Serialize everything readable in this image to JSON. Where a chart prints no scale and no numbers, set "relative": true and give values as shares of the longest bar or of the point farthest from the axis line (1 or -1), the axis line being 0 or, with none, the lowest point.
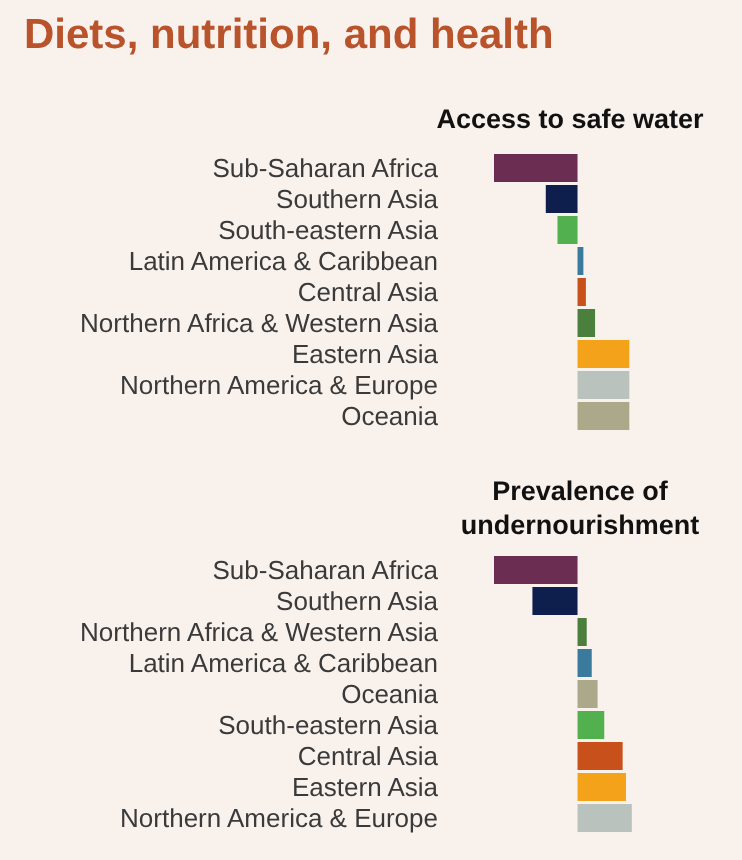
{
  "chart_data": [
    {
      "type": "bar",
      "orientation": "horizontal",
      "relative": true,
      "title": "Diets, nutrition, and health",
      "subtitle": "Access to safe water",
      "categories": [
        "Sub-Saharan Africa",
        "Southern Asia",
        "South-eastern Asia",
        "Latin America & Caribbean",
        "Central Asia",
        "Northern Africa & Western Asia",
        "Eastern Asia",
        "Northern America & Europe",
        "Oceania"
      ],
      "values": [
        -1,
        -0.38,
        -0.24,
        0.07,
        0.1,
        0.21,
        0.62,
        0.62,
        0.62
      ],
      "colors": [
        "#6b2d52",
        "#0e1f4d",
        "#52b04f",
        "#3a7a9c",
        "#c8501a",
        "#4a7f3e",
        "#f5a21b",
        "#b9c2bd",
        "#aca88a"
      ]
    },
    {
      "type": "bar",
      "orientation": "horizontal",
      "relative": true,
      "subtitle": "Prevalence of undernourishment",
      "categories": [
        "Sub-Saharan Africa",
        "Southern Asia",
        "Northern Africa & Western Asia",
        "Latin America & Caribbean",
        "Oceania",
        "South-eastern Asia",
        "Central Asia",
        "Eastern Asia",
        "Northern America & Europe"
      ],
      "values": [
        -1,
        -0.54,
        0.11,
        0.17,
        0.24,
        0.32,
        0.54,
        0.58,
        0.65
      ],
      "colors": [
        "#6b2d52",
        "#0e1f4d",
        "#4a7f3e",
        "#3a7a9c",
        "#aca88a",
        "#52b04f",
        "#c8501a",
        "#f5a21b",
        "#b9c2bd"
      ]
    }
  ]
}
